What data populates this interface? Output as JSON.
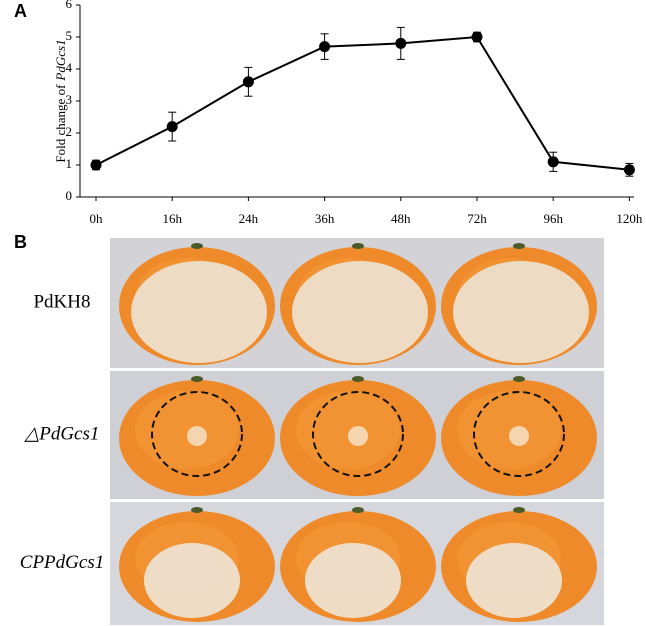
{
  "panel_labels": [
    "A",
    "B"
  ],
  "chart_data": {
    "type": "line",
    "ylabel": [
      "Fold change of",
      "PdGcs1"
    ],
    "categories": [
      "0h",
      "16h",
      "24h",
      "36h",
      "48h",
      "72h",
      "96h",
      "120h"
    ],
    "values": [
      1.0,
      2.2,
      3.6,
      4.7,
      4.8,
      5.0,
      1.1,
      0.85
    ],
    "errors": [
      0.15,
      0.45,
      0.45,
      0.4,
      0.5,
      0.15,
      0.3,
      0.2
    ],
    "color": "#000000",
    "ylim": [
      0,
      6
    ],
    "yticks": [
      0,
      1,
      2,
      3,
      4,
      5,
      6
    ]
  },
  "photo_rows": [
    "PdKH8",
    "△PdGcs1",
    "CPPdGcs1"
  ]
}
